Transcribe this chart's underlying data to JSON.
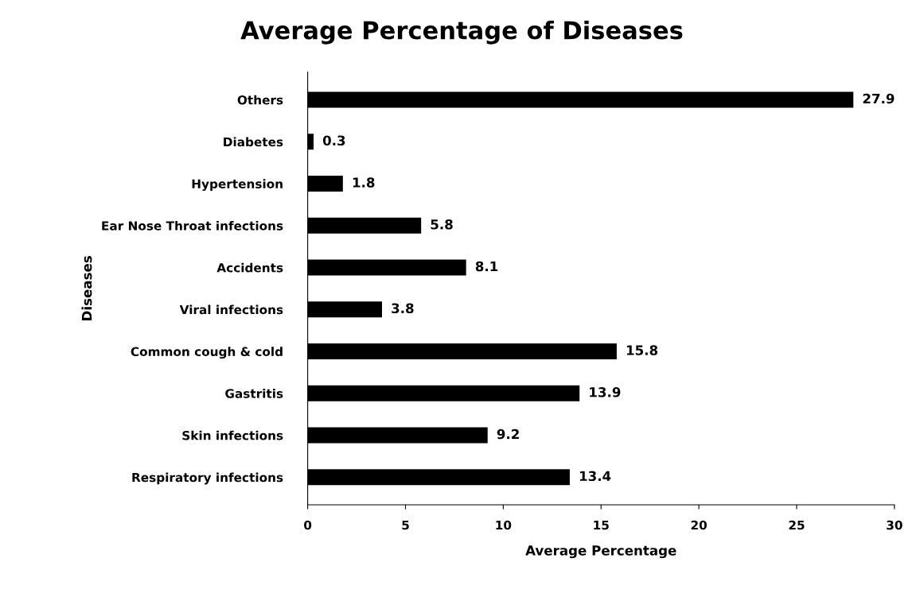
{
  "chart_data": {
    "type": "bar",
    "orientation": "horizontal",
    "title": "Average Percentage of Diseases",
    "xlabel": "Average Percentage",
    "ylabel": "Diseases",
    "categories": [
      "Others",
      "Diabetes",
      "Hypertension",
      "Ear Nose Throat infections",
      "Accidents",
      "Viral infections",
      "Common cough & cold",
      "Gastritis",
      "Skin infections",
      "Respiratory infections"
    ],
    "values": [
      27.9,
      0.3,
      1.8,
      5.8,
      8.1,
      3.8,
      15.8,
      13.9,
      9.2,
      13.4
    ],
    "color": "#000000",
    "xlim": [
      0,
      30
    ],
    "xticks": [
      0,
      5,
      10,
      15,
      20,
      25,
      30
    ],
    "data_labels": true,
    "grid": false
  }
}
